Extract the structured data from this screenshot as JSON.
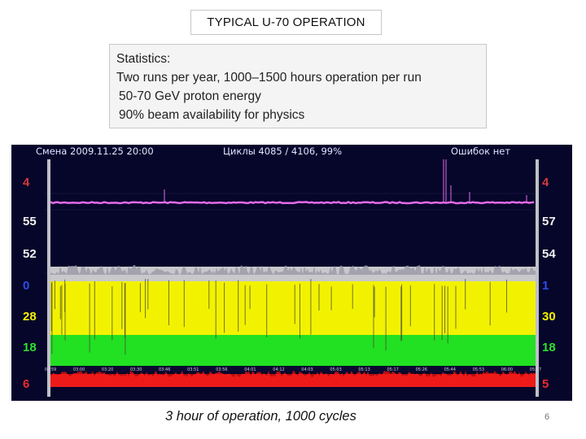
{
  "title": "TYPICAL U-70 OPERATION",
  "statistics": {
    "heading": "Statistics:",
    "lines": [
      "Two runs per year, 1000–1500 hours operation per run",
      "50-70 GeV proton energy",
      "90% beam availability for physics"
    ]
  },
  "monitor": {
    "header_left": "Смена  2009.11.25 20:00",
    "header_center": "Циклы    4085 / 4106,  99%",
    "header_right": "Ошибок нет",
    "channels": [
      {
        "left": "4",
        "right": "4",
        "color": "#d33a3a"
      },
      {
        "left": "55",
        "right": "57",
        "color": "#f0f0f0"
      },
      {
        "left": "52",
        "right": "54",
        "color": "#f0f0f0"
      },
      {
        "left": "0",
        "right": "1",
        "color": "#2c4de8"
      },
      {
        "left": "28",
        "right": "30",
        "color": "#f4f000"
      },
      {
        "left": "18",
        "right": "18",
        "color": "#2fe02f"
      },
      {
        "left": "6",
        "right": "5",
        "color": "#e82c2c"
      }
    ],
    "time_ticks": [
      "02:59",
      "03:00",
      "03:20",
      "03:30",
      "03:46",
      "03:51",
      "03:56",
      "04:01",
      "04:12",
      "04:03",
      "05:03",
      "05:13",
      "05:17",
      "05:26",
      "05:44",
      "05:53",
      "06:00",
      "05:47"
    ]
  },
  "caption": "3 hour of operation, 1000 cycles",
  "page_number": "6",
  "colors": {
    "monitor_bg": "#06062a",
    "magenta_trace": "#e46ae8",
    "white_band": "#c8c8cc",
    "yellow_band": "#f2f200",
    "green_band": "#22e022",
    "red_band": "#ee1a1a"
  }
}
